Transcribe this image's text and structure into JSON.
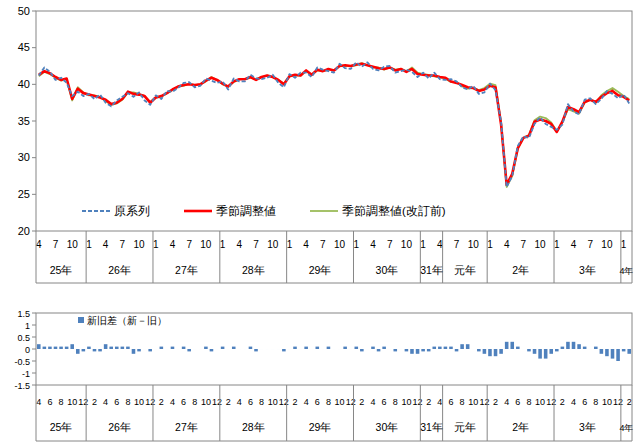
{
  "chart_data": [
    {
      "type": "line",
      "categories": [
        "4",
        null,
        null,
        "7",
        null,
        null,
        "10",
        null,
        null,
        "1",
        null,
        null,
        "4",
        null,
        null,
        "7",
        null,
        null,
        "10",
        null,
        null,
        "1",
        null,
        null,
        "4",
        null,
        null,
        "7",
        null,
        null,
        "10",
        null,
        null,
        "1",
        null,
        null,
        "4",
        null,
        null,
        "7",
        null,
        null,
        "10",
        null,
        null,
        "1",
        null,
        null,
        "4",
        null,
        null,
        "7",
        null,
        null,
        "10",
        null,
        null,
        "1",
        null,
        null,
        "4",
        null,
        null,
        "7",
        null,
        null,
        "10",
        null,
        null,
        "1",
        null,
        null,
        "4",
        null,
        null,
        "7",
        null,
        null,
        "10",
        null,
        null,
        "1",
        null,
        null,
        "4",
        null,
        null,
        "7",
        null,
        null,
        "10",
        null,
        null,
        "1",
        null,
        null,
        "4",
        null,
        null,
        "7",
        null,
        null,
        "10",
        null,
        null,
        "1",
        null
      ],
      "x_groups": [
        {
          "label": "25年",
          "count": 9
        },
        {
          "label": "26年",
          "count": 12
        },
        {
          "label": "27年",
          "count": 12
        },
        {
          "label": "28年",
          "count": 12
        },
        {
          "label": "29年",
          "count": 12
        },
        {
          "label": "30年",
          "count": 12
        },
        {
          "label": "31年",
          "count": 4
        },
        {
          "label": "元年",
          "count": 8
        },
        {
          "label": "2年",
          "count": 12
        },
        {
          "label": "3年",
          "count": 12
        },
        {
          "label": "4年",
          "count": 2
        }
      ],
      "series": [
        {
          "name": "原系列",
          "color": "#4f81bd",
          "line_style": "dashed",
          "values": [
            41.2,
            42.3,
            41.7,
            40.6,
            40.9,
            40.2,
            38.4,
            39.0,
            38.4,
            38.7,
            38.0,
            38.6,
            37.5,
            37.0,
            37.8,
            38.3,
            38.8,
            38.3,
            38.9,
            37.8,
            37.2,
            38.5,
            38.0,
            39.1,
            39.0,
            39.5,
            40.2,
            40.3,
            39.6,
            39.8,
            40.8,
            40.5,
            40.2,
            40.4,
            39.3,
            40.8,
            40.4,
            40.4,
            41.3,
            40.8,
            40.7,
            40.9,
            41.3,
            40.2,
            39.6,
            41.4,
            40.9,
            41.6,
            41.6,
            41.0,
            42.3,
            42.0,
            41.8,
            41.6,
            42.8,
            42.2,
            42.1,
            43.0,
            42.4,
            43.0,
            42.1,
            41.9,
            42.4,
            42.5,
            41.6,
            41.8,
            42.0,
            41.7,
            41.0,
            41.6,
            40.8,
            41.6,
            40.7,
            40.6,
            40.7,
            40.4,
            39.6,
            39.3,
            39.8,
            38.7,
            38.9,
            40.1,
            39.2,
            34.9,
            26.0,
            27.5,
            31.6,
            32.9,
            32.7,
            34.6,
            35.5,
            34.6,
            34.2,
            33.8,
            34.5,
            37.3,
            36.3,
            35.9,
            37.9,
            38.1,
            37.3,
            38.0,
            39.1,
            38.7,
            38.1,
            38.6,
            37.4
          ]
        },
        {
          "name": "季節調整値",
          "color": "#ff0000",
          "line_style": "solid",
          "values": [
            41.3,
            41.8,
            41.5,
            41.0,
            40.6,
            40.8,
            38.0,
            39.4,
            38.8,
            38.6,
            38.4,
            38.2,
            37.9,
            37.3,
            37.5,
            38.0,
            39.0,
            38.7,
            38.6,
            38.4,
            37.5,
            38.2,
            38.4,
            38.8,
            39.3,
            39.7,
            39.9,
            40.0,
            39.9,
            40.0,
            40.5,
            40.9,
            40.6,
            40.1,
            39.7,
            40.4,
            40.7,
            40.7,
            41.0,
            40.6,
            41.0,
            41.2,
            41.0,
            40.6,
            40.0,
            41.1,
            41.3,
            41.2,
            41.9,
            41.3,
            42.0,
            41.8,
            42.1,
            41.9,
            42.5,
            42.6,
            42.5,
            42.7,
            42.8,
            42.6,
            42.4,
            42.2,
            42.1,
            42.3,
            41.9,
            42.1,
            41.7,
            42.1,
            41.4,
            41.3,
            41.2,
            41.2,
            41.0,
            40.9,
            40.4,
            40.2,
            39.9,
            39.6,
            39.5,
            39.1,
            39.3,
            39.8,
            39.6,
            34.5,
            26.3,
            27.8,
            31.3,
            32.7,
            33.0,
            34.9,
            35.2,
            35.0,
            34.6,
            33.5,
            34.9,
            36.9,
            36.6,
            36.2,
            37.6,
            37.9,
            37.6,
            38.3,
            38.8,
            39.1,
            38.5,
            38.3,
            37.8
          ]
        },
        {
          "name": "季節調整値(改訂前)",
          "color": "#9bbb59",
          "line_style": "solid",
          "values": [
            41.1,
            41.7,
            41.4,
            40.9,
            40.5,
            40.7,
            37.8,
            39.6,
            38.9,
            38.5,
            38.5,
            38.3,
            37.7,
            37.2,
            37.4,
            37.9,
            38.9,
            38.9,
            38.7,
            38.4,
            37.6,
            38.2,
            38.3,
            38.8,
            39.2,
            39.7,
            39.8,
            40.1,
            39.9,
            40.0,
            40.4,
            41.0,
            40.6,
            40.0,
            39.7,
            40.3,
            40.7,
            40.7,
            40.9,
            40.7,
            41.0,
            41.2,
            41.0,
            40.6,
            40.1,
            41.1,
            41.2,
            41.2,
            41.8,
            41.3,
            41.9,
            41.8,
            42.0,
            41.9,
            42.5,
            42.5,
            42.5,
            42.6,
            42.9,
            42.6,
            42.3,
            42.3,
            42.0,
            42.3,
            42.0,
            42.1,
            41.8,
            42.3,
            41.6,
            41.4,
            41.3,
            41.1,
            40.9,
            40.8,
            40.3,
            40.3,
            39.7,
            39.4,
            39.5,
            39.2,
            39.5,
            40.1,
            39.9,
            34.7,
            26.0,
            27.5,
            31.2,
            32.7,
            33.1,
            35.1,
            35.6,
            35.4,
            34.8,
            33.6,
            34.8,
            36.6,
            36.3,
            36.0,
            37.5,
            37.9,
            37.5,
            38.5,
            39.1,
            39.5,
            39.0,
            38.4,
            38.0
          ]
        }
      ],
      "ylim": [
        20,
        50
      ],
      "yticks": [
        20,
        25,
        30,
        35,
        40,
        45,
        50
      ],
      "grid": false,
      "legend": "lower left"
    },
    {
      "type": "bar",
      "categories": [
        "4",
        null,
        "6",
        null,
        "8",
        null,
        "10",
        null,
        "12",
        null,
        "2",
        null,
        "4",
        null,
        "6",
        null,
        "8",
        null,
        "10",
        null,
        "12",
        null,
        "2",
        null,
        "4",
        null,
        "6",
        null,
        "8",
        null,
        "10",
        null,
        "12",
        null,
        "2",
        null,
        "4",
        null,
        "6",
        null,
        "8",
        null,
        "10",
        null,
        "12",
        null,
        "2",
        null,
        "4",
        null,
        "6",
        null,
        "8",
        null,
        "10",
        null,
        "12",
        null,
        "2",
        null,
        "4",
        null,
        "6",
        null,
        "8",
        null,
        "10",
        null,
        "12",
        null,
        "2",
        null,
        "4",
        null,
        "6",
        null,
        "8",
        null,
        "10",
        null,
        "12",
        null,
        "2",
        null,
        "4",
        null,
        "6",
        null,
        "8",
        null,
        "10",
        null,
        "12",
        null,
        "2",
        null,
        "4",
        null,
        "6",
        null,
        "8",
        null,
        "10",
        null,
        "12",
        null,
        "2"
      ],
      "x_groups": [
        {
          "label": "25年",
          "count": 9
        },
        {
          "label": "26年",
          "count": 12
        },
        {
          "label": "27年",
          "count": 12
        },
        {
          "label": "28年",
          "count": 12
        },
        {
          "label": "29年",
          "count": 12
        },
        {
          "label": "30年",
          "count": 12
        },
        {
          "label": "31年",
          "count": 4
        },
        {
          "label": "元年",
          "count": 8
        },
        {
          "label": "2年",
          "count": 12
        },
        {
          "label": "3年",
          "count": 12
        },
        {
          "label": "4年",
          "count": 2
        }
      ],
      "series": [
        {
          "name": "新旧差（新－旧）",
          "color": "#4f81bd",
          "values": [
            0.2,
            0.1,
            0.1,
            0.1,
            0.1,
            0.1,
            0.2,
            -0.2,
            -0.1,
            0.1,
            -0.1,
            -0.1,
            0.2,
            0.1,
            0.1,
            0.1,
            0.1,
            -0.2,
            -0.1,
            0.0,
            -0.1,
            0.0,
            0.1,
            0.0,
            0.1,
            0.0,
            0.1,
            -0.1,
            0.0,
            0.0,
            0.1,
            -0.1,
            0.0,
            0.1,
            0.0,
            0.1,
            0.0,
            0.0,
            0.1,
            -0.1,
            0.0,
            0.0,
            0.0,
            0.0,
            -0.1,
            0.0,
            0.1,
            0.0,
            0.1,
            0.0,
            0.1,
            0.0,
            0.1,
            0.0,
            0.0,
            0.1,
            0.0,
            0.1,
            -0.1,
            0.0,
            0.1,
            -0.1,
            0.1,
            0.0,
            -0.1,
            0.0,
            -0.1,
            -0.2,
            -0.2,
            -0.1,
            -0.1,
            0.1,
            0.1,
            0.1,
            0.1,
            -0.1,
            0.2,
            0.2,
            0.0,
            -0.1,
            -0.2,
            -0.3,
            -0.3,
            -0.2,
            0.3,
            0.3,
            0.1,
            0.0,
            -0.1,
            -0.2,
            -0.4,
            -0.4,
            -0.2,
            -0.1,
            0.1,
            0.3,
            0.3,
            0.2,
            0.1,
            0.0,
            0.1,
            -0.2,
            -0.3,
            -0.4,
            -0.5,
            -0.1,
            -0.2
          ]
        }
      ],
      "ylim": [
        -1.5,
        1.5
      ],
      "yticks": [
        -1.5,
        -1,
        -0.5,
        0,
        0.5,
        1,
        1.5
      ],
      "grid": false,
      "legend": "upper left"
    }
  ]
}
